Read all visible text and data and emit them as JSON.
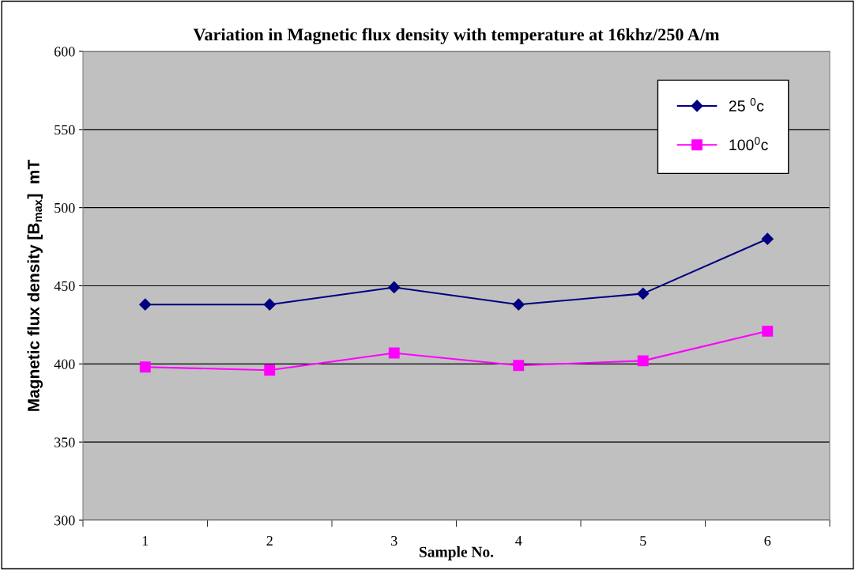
{
  "chart_data": {
    "type": "line",
    "title": "Variation in Magnetic flux density with temperature at 16khz/250 A/m",
    "xlabel": "Sample No.",
    "ylabel": "Magnetic flux density [B$_{max}$]  mT",
    "categories": [
      "1",
      "2",
      "3",
      "4",
      "5",
      "6"
    ],
    "series": [
      {
        "name": "25 $^{0}$c",
        "color": "#000080",
        "marker": "diamond",
        "values": [
          438,
          438,
          449,
          438,
          445,
          480
        ]
      },
      {
        "name": "100$^{0}$c",
        "color": "#ff00ff",
        "marker": "square",
        "values": [
          398,
          396,
          407,
          399,
          402,
          421
        ]
      }
    ],
    "ylim": [
      300,
      600
    ],
    "yticks": [
      300,
      350,
      400,
      450,
      500,
      550,
      600
    ],
    "grid": "y",
    "legend": "top right",
    "line_style": "solid"
  }
}
